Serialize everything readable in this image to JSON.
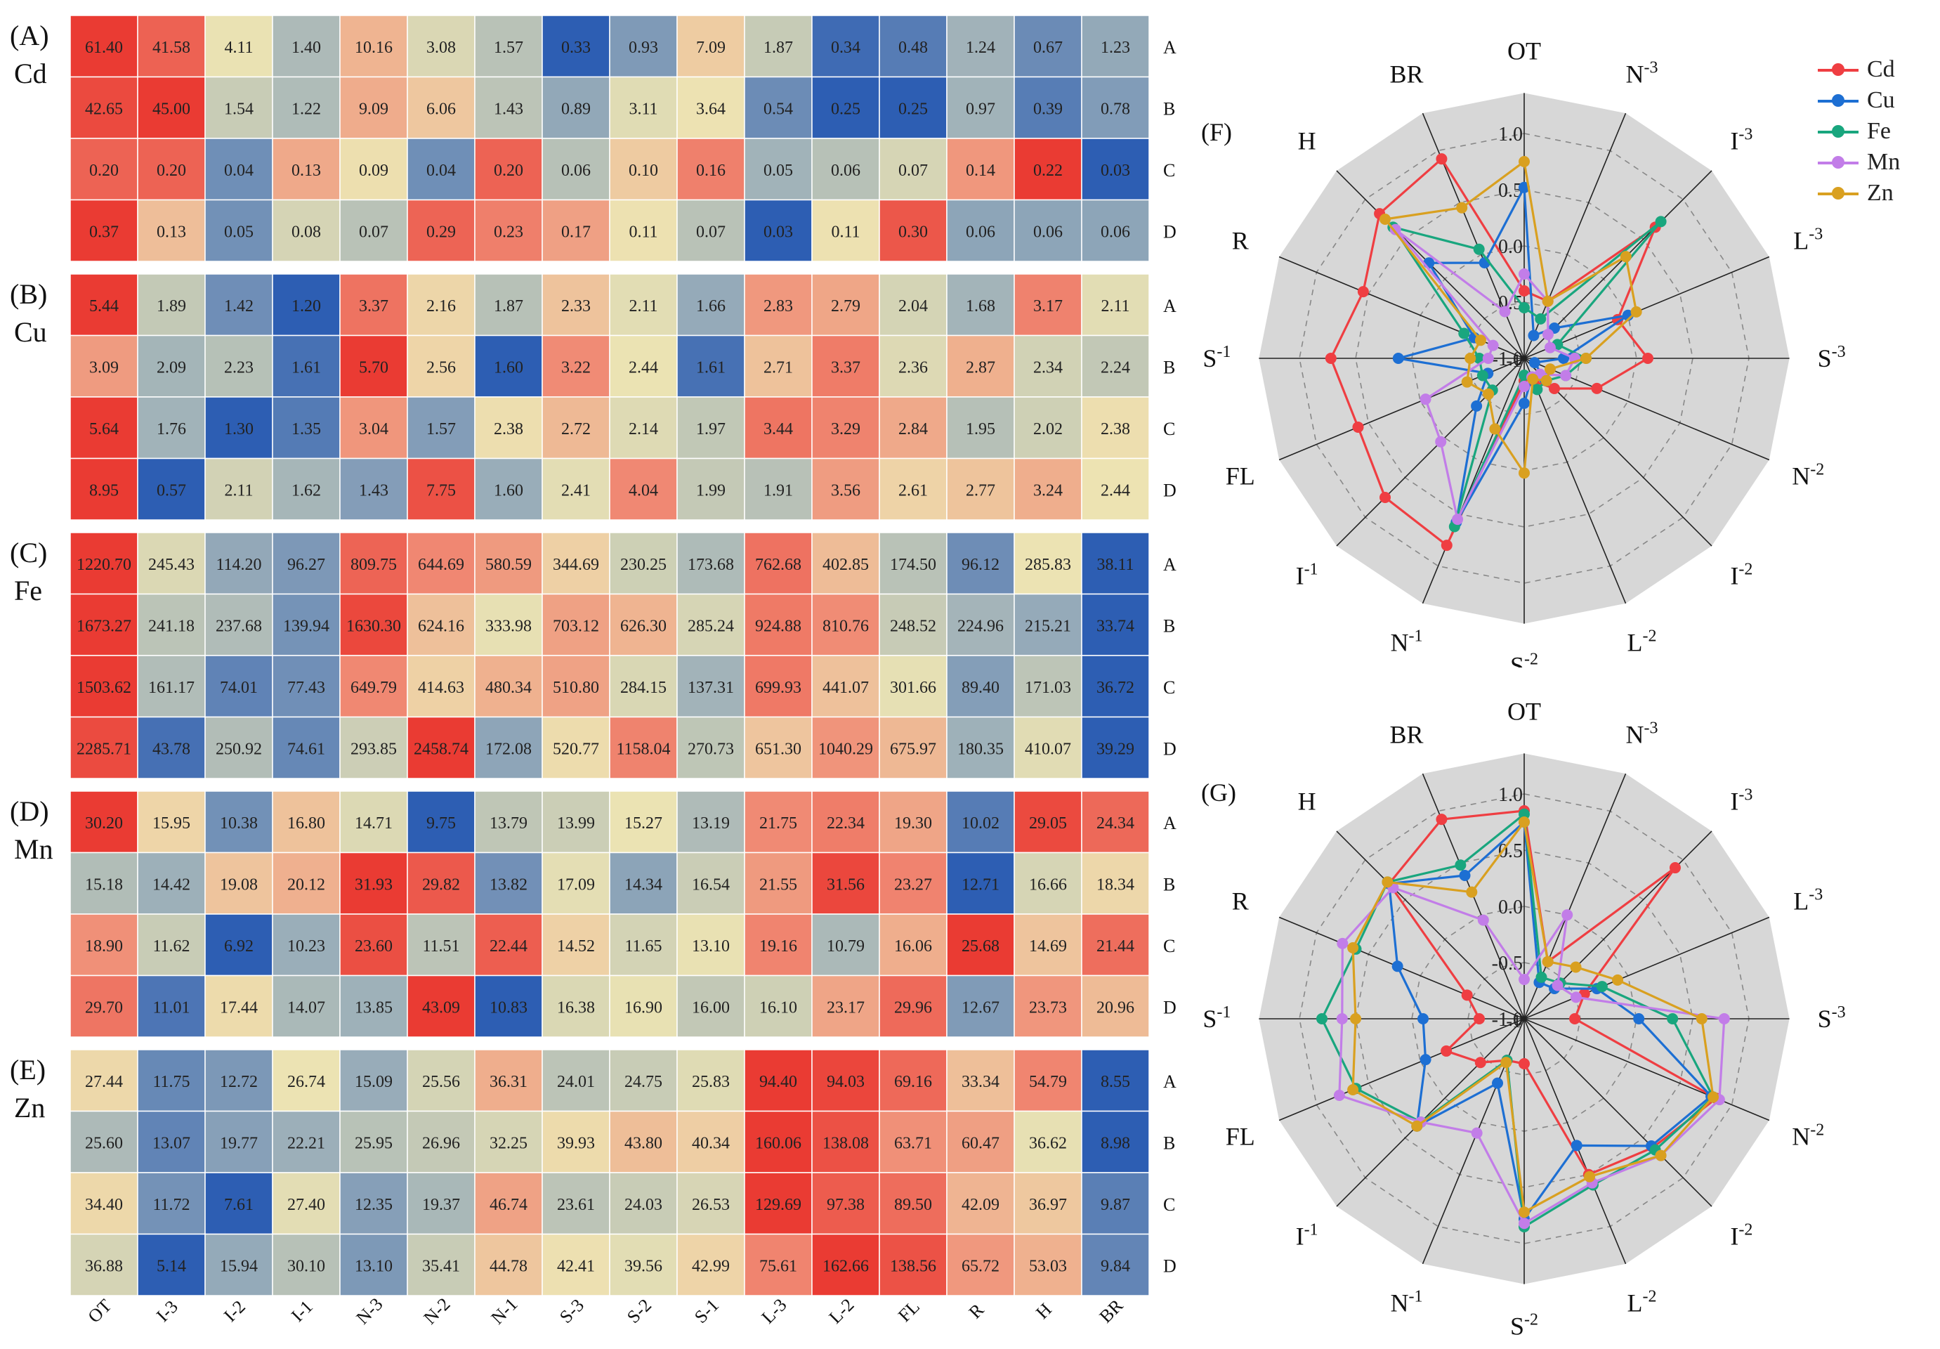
{
  "colors": {
    "high": "#ea3b33",
    "midhigh": "#f08a74",
    "mid": "#ede4b3",
    "midlow": "#9db0b9",
    "low": "#2d5eb3"
  },
  "heatmap": {
    "columns": [
      "OT",
      "I-3",
      "I-2",
      "I-1",
      "N-3",
      "N-2",
      "N-1",
      "S-3",
      "S-2",
      "S-1",
      "L-3",
      "L-2",
      "FL",
      "R",
      "H",
      "BR"
    ],
    "rows": [
      "A",
      "B",
      "C",
      "D"
    ],
    "panels": [
      {
        "tag": "(A)",
        "metal": "Cd",
        "values": [
          [
            "61.40",
            "41.58",
            "4.11",
            "1.40",
            "10.16",
            "3.08",
            "1.57",
            "0.33",
            "0.93",
            "7.09",
            "1.87",
            "0.34",
            "0.48",
            "1.24",
            "0.67",
            "1.23"
          ],
          [
            "42.65",
            "45.00",
            "1.54",
            "1.22",
            "9.09",
            "6.06",
            "1.43",
            "0.89",
            "3.11",
            "3.64",
            "0.54",
            "0.25",
            "0.25",
            "0.97",
            "0.39",
            "0.78"
          ],
          [
            "0.20",
            "0.20",
            "0.04",
            "0.13",
            "0.09",
            "0.04",
            "0.20",
            "0.06",
            "0.10",
            "0.16",
            "0.05",
            "0.06",
            "0.07",
            "0.14",
            "0.22",
            "0.03"
          ],
          [
            "0.37",
            "0.13",
            "0.05",
            "0.08",
            "0.07",
            "0.29",
            "0.23",
            "0.17",
            "0.11",
            "0.07",
            "0.03",
            "0.11",
            "0.30",
            "0.06",
            "0.06",
            "0.06"
          ]
        ]
      },
      {
        "tag": "(B)",
        "metal": "Cu",
        "values": [
          [
            "5.44",
            "1.89",
            "1.42",
            "1.20",
            "3.37",
            "2.16",
            "1.87",
            "2.33",
            "2.11",
            "1.66",
            "2.83",
            "2.79",
            "2.04",
            "1.68",
            "3.17",
            "2.11"
          ],
          [
            "3.09",
            "2.09",
            "2.23",
            "1.61",
            "5.70",
            "2.56",
            "1.60",
            "3.22",
            "2.44",
            "1.61",
            "2.71",
            "3.37",
            "2.36",
            "2.87",
            "2.34",
            "2.24"
          ],
          [
            "5.64",
            "1.76",
            "1.30",
            "1.35",
            "3.04",
            "1.57",
            "2.38",
            "2.72",
            "2.14",
            "1.97",
            "3.44",
            "3.29",
            "2.84",
            "1.95",
            "2.02",
            "2.38"
          ],
          [
            "8.95",
            "0.57",
            "2.11",
            "1.62",
            "1.43",
            "7.75",
            "1.60",
            "2.41",
            "4.04",
            "1.99",
            "1.91",
            "3.56",
            "2.61",
            "2.77",
            "3.24",
            "2.44"
          ]
        ]
      },
      {
        "tag": "(C)",
        "metal": "Fe",
        "values": [
          [
            "1220.70",
            "245.43",
            "114.20",
            "96.27",
            "809.75",
            "644.69",
            "580.59",
            "344.69",
            "230.25",
            "173.68",
            "762.68",
            "402.85",
            "174.50",
            "96.12",
            "285.83",
            "38.11"
          ],
          [
            "1673.27",
            "241.18",
            "237.68",
            "139.94",
            "1630.30",
            "624.16",
            "333.98",
            "703.12",
            "626.30",
            "285.24",
            "924.88",
            "810.76",
            "248.52",
            "224.96",
            "215.21",
            "33.74"
          ],
          [
            "1503.62",
            "161.17",
            "74.01",
            "77.43",
            "649.79",
            "414.63",
            "480.34",
            "510.80",
            "284.15",
            "137.31",
            "699.93",
            "441.07",
            "301.66",
            "89.40",
            "171.03",
            "36.72"
          ],
          [
            "2285.71",
            "43.78",
            "250.92",
            "74.61",
            "293.85",
            "2458.74",
            "172.08",
            "520.77",
            "1158.04",
            "270.73",
            "651.30",
            "1040.29",
            "675.97",
            "180.35",
            "410.07",
            "39.29"
          ]
        ]
      },
      {
        "tag": "(D)",
        "metal": "Mn",
        "values": [
          [
            "30.20",
            "15.95",
            "10.38",
            "16.80",
            "14.71",
            "9.75",
            "13.79",
            "13.99",
            "15.27",
            "13.19",
            "21.75",
            "22.34",
            "19.30",
            "10.02",
            "29.05",
            "24.34"
          ],
          [
            "15.18",
            "14.42",
            "19.08",
            "20.12",
            "31.93",
            "29.82",
            "13.82",
            "17.09",
            "14.34",
            "16.54",
            "21.55",
            "31.56",
            "23.27",
            "12.71",
            "16.66",
            "18.34"
          ],
          [
            "18.90",
            "11.62",
            "6.92",
            "10.23",
            "23.60",
            "11.51",
            "22.44",
            "14.52",
            "11.65",
            "13.10",
            "19.16",
            "10.79",
            "16.06",
            "25.68",
            "14.69",
            "21.44"
          ],
          [
            "29.70",
            "11.01",
            "17.44",
            "14.07",
            "13.85",
            "43.09",
            "10.83",
            "16.38",
            "16.90",
            "16.00",
            "16.10",
            "23.17",
            "29.96",
            "12.67",
            "23.73",
            "20.96"
          ]
        ]
      },
      {
        "tag": "(E)",
        "metal": "Zn",
        "values": [
          [
            "27.44",
            "11.75",
            "12.72",
            "26.74",
            "15.09",
            "25.56",
            "36.31",
            "24.01",
            "24.75",
            "25.83",
            "94.40",
            "94.03",
            "69.16",
            "33.34",
            "54.79",
            "8.55"
          ],
          [
            "25.60",
            "13.07",
            "19.77",
            "22.21",
            "25.95",
            "26.96",
            "32.25",
            "39.93",
            "43.80",
            "40.34",
            "160.06",
            "138.08",
            "63.71",
            "60.47",
            "36.62",
            "8.98"
          ],
          [
            "34.40",
            "11.72",
            "7.61",
            "27.40",
            "12.35",
            "19.37",
            "46.74",
            "23.61",
            "24.03",
            "26.53",
            "129.69",
            "97.38",
            "89.50",
            "42.09",
            "36.97",
            "9.87"
          ],
          [
            "36.88",
            "5.14",
            "15.94",
            "30.10",
            "13.10",
            "35.41",
            "44.78",
            "42.41",
            "39.56",
            "42.99",
            "75.61",
            "162.66",
            "138.56",
            "65.72",
            "53.03",
            "9.84"
          ]
        ]
      }
    ]
  },
  "chart_data": [
    {
      "type": "heatmap",
      "title": "",
      "rows": [
        "A",
        "B",
        "C",
        "D"
      ],
      "columns": [
        "OT",
        "I-3",
        "I-2",
        "I-1",
        "N-3",
        "N-2",
        "N-1",
        "S-3",
        "S-2",
        "S-1",
        "L-3",
        "L-2",
        "FL",
        "R",
        "H",
        "BR"
      ],
      "panels": [
        "Cd",
        "Cu",
        "Fe",
        "Mn",
        "Zn"
      ]
    },
    {
      "type": "radar",
      "tag": "(F)",
      "axes": [
        "OT",
        "N-3",
        "I-3",
        "L-3",
        "S-3",
        "N-2",
        "I-2",
        "L-2",
        "S-2",
        "N-1",
        "I-1",
        "FL",
        "S-1",
        "R",
        "H",
        "BR"
      ],
      "rlim": [
        -1,
        1
      ],
      "ticks": [
        "1.0",
        "0.5",
        "0.0",
        "-0.5",
        "-1.0",
        "-1"
      ],
      "series": [
        {
          "name": "Cd",
          "color": "#ef3e42",
          "values": [
            -0.4,
            -0.45,
            0.65,
            -0.1,
            0.1,
            -0.3,
            -0.62,
            -0.78,
            -0.8,
            0.8,
            0.75,
            0.6,
            0.72,
            0.55,
            0.82,
            0.92
          ]
        },
        {
          "name": "Cu",
          "color": "#1d6fd3",
          "values": [
            0.52,
            -0.78,
            -0.62,
            0.0,
            -0.65,
            -0.9,
            -0.75,
            -0.82,
            -0.6,
            0.58,
            -0.4,
            -0.65,
            0.12,
            -0.52,
            0.2,
            -0.08
          ]
        },
        {
          "name": "Fe",
          "color": "#19a67e",
          "values": [
            -0.55,
            -0.62,
            0.72,
            -0.68,
            -0.45,
            -0.6,
            -0.72,
            -0.7,
            -0.85,
            0.62,
            -0.6,
            -0.6,
            -0.6,
            -0.42,
            0.65,
            0.05
          ]
        },
        {
          "name": "Mn",
          "color": "#c27de8",
          "values": [
            -0.25,
            -0.45,
            -0.7,
            -0.75,
            -0.55,
            -0.6,
            -0.8,
            -0.82,
            -0.75,
            0.55,
            0.05,
            -0.05,
            -0.68,
            -0.7,
            0.62,
            -0.55
          ]
        },
        {
          "name": "Zn",
          "color": "#d9a020",
          "values": [
            0.75,
            -0.45,
            0.28,
            0.08,
            -0.45,
            -0.75,
            -0.72,
            -0.8,
            0.02,
            -0.32,
            -0.55,
            -0.45,
            -0.52,
            -0.58,
            0.75,
            0.45
          ]
        }
      ]
    },
    {
      "type": "radar",
      "tag": "(G)",
      "axes": [
        "OT",
        "N-3",
        "I-3",
        "L-3",
        "S-3",
        "N-2",
        "I-2",
        "L-2",
        "S-2",
        "N-1",
        "I-1",
        "FL",
        "S-1",
        "R",
        "H",
        "BR"
      ],
      "rlim": [
        -1,
        1
      ],
      "ticks": [
        "1.0",
        "0.5",
        "0.0",
        "-0.5",
        "-1.0",
        "-1"
      ],
      "series": [
        {
          "name": "Cd",
          "color": "#ef3e42",
          "values": [
            0.85,
            -0.45,
            0.9,
            -0.42,
            -0.55,
            0.85,
            0.62,
            0.5,
            -0.6,
            -0.6,
            -0.45,
            -0.25,
            -0.6,
            -0.45,
            0.7,
            0.92
          ]
        },
        {
          "name": "Cu",
          "color": "#1d6fd3",
          "values": [
            0.75,
            -0.65,
            -0.62,
            -0.3,
            0.02,
            0.8,
            0.6,
            0.22,
            0.78,
            -0.38,
            0.35,
            -0.05,
            -0.1,
            0.22,
            0.7,
            0.38
          ]
        },
        {
          "name": "Fe",
          "color": "#19a67e",
          "values": [
            0.82,
            -0.6,
            -0.55,
            -0.25,
            0.32,
            0.82,
            0.65,
            0.6,
            0.85,
            -0.6,
            0.3,
            0.62,
            0.8,
            0.62,
            0.72,
            0.48
          ]
        },
        {
          "name": "Mn",
          "color": "#c27de8",
          "values": [
            -0.65,
            0.0,
            -0.58,
            -0.5,
            0.78,
            0.88,
            0.72,
            0.58,
            0.82,
            0.1,
            0.3,
            0.78,
            0.62,
            0.75,
            0.65,
            -0.05
          ]
        },
        {
          "name": "Zn",
          "color": "#d9a020",
          "values": [
            0.75,
            -0.45,
            -0.35,
            -0.1,
            0.58,
            0.82,
            0.72,
            0.52,
            0.72,
            -0.58,
            0.35,
            0.65,
            0.5,
            0.65,
            0.72,
            0.22
          ]
        }
      ]
    }
  ]
}
